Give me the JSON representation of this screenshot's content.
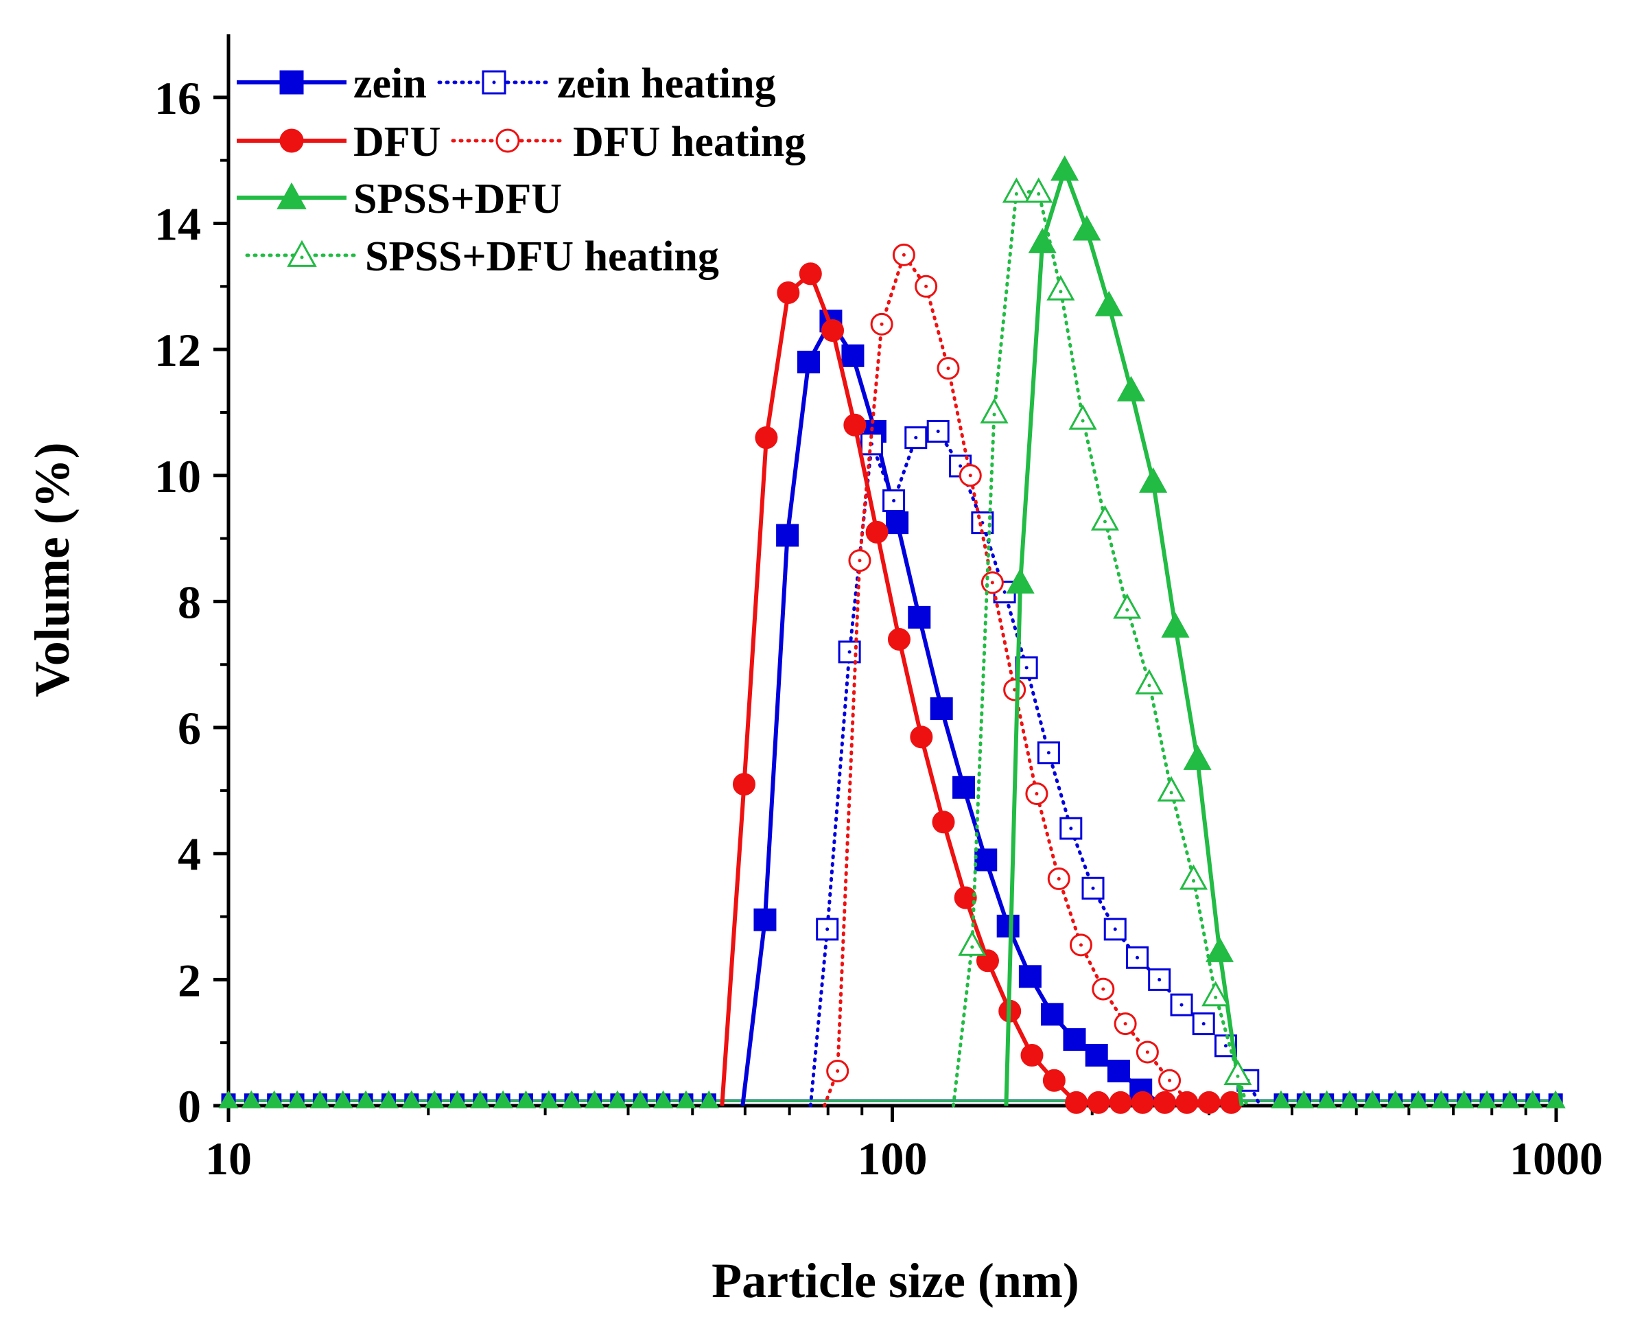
{
  "chart_data": {
    "type": "line",
    "xscale": "log",
    "xlim": [
      10,
      1000
    ],
    "ylim": [
      0,
      17
    ],
    "xlabel": "Particle size (nm)",
    "ylabel": "Volume (%)",
    "xticks": [
      10,
      100,
      1000
    ],
    "xtick_labels": [
      "10",
      "100",
      "1000"
    ],
    "yticks": [
      0,
      2,
      4,
      6,
      8,
      10,
      12,
      14,
      16
    ],
    "ytick_labels": [
      "0",
      "2",
      "4",
      "6",
      "8",
      "10",
      "12",
      "14",
      "16"
    ],
    "grid": false,
    "legend_position": "top-left",
    "series": [
      {
        "name": "zein",
        "color": "#0000dd",
        "dash": "solid",
        "marker": "square",
        "filled": true,
        "x": [
          59.5,
          64.3,
          69.5,
          74.8,
          80.8,
          87.2,
          94.2,
          101.7,
          109.8,
          118.6,
          128.1,
          138.3,
          149.4,
          161.3,
          174.1,
          188.1,
          203.1,
          219.3,
          236.8,
          255.7
        ],
        "y": [
          0,
          2.95,
          9.05,
          11.8,
          12.45,
          11.9,
          10.7,
          9.25,
          7.75,
          6.3,
          5.05,
          3.9,
          2.85,
          2.05,
          1.45,
          1.05,
          0.8,
          0.55,
          0.25,
          0
        ]
      },
      {
        "name": "zein heating",
        "color": "#0000dd",
        "dash": "dotted",
        "marker": "square",
        "filled": false,
        "x": [
          75.3,
          79.8,
          86.2,
          93.1,
          100.5,
          108.5,
          117.2,
          126.6,
          136.7,
          147.6,
          159.3,
          172.0,
          185.8,
          200.6,
          216.6,
          233.9,
          252.5,
          272.7,
          294.4,
          317.9,
          343.3,
          358.0
        ],
        "y": [
          0,
          2.8,
          7.2,
          10.5,
          9.6,
          10.6,
          10.7,
          10.15,
          9.25,
          8.15,
          6.95,
          5.6,
          4.4,
          3.45,
          2.8,
          2.35,
          2.0,
          1.6,
          1.3,
          0.95,
          0.4,
          0
        ]
      },
      {
        "name": "DFU",
        "color": "#ee1111",
        "dash": "solid",
        "marker": "circle",
        "filled": true,
        "x": [
          55.4,
          59.8,
          64.6,
          69.7,
          75.3,
          81.3,
          87.8,
          94.8,
          102.4,
          110.6,
          119.4,
          128.9,
          139.2,
          150.3,
          162.3,
          175.3,
          189.3,
          204.4,
          220.7,
          238.3,
          257.3,
          277.8,
          300.0,
          323.9
        ],
        "y": [
          0,
          5.1,
          10.6,
          12.9,
          13.2,
          12.3,
          10.8,
          9.1,
          7.4,
          5.85,
          4.5,
          3.3,
          2.3,
          1.5,
          0.8,
          0.4,
          0.05,
          0.05,
          0.05,
          0.05,
          0.05,
          0.05,
          0.05,
          0.05
        ]
      },
      {
        "name": "DFU heating",
        "color": "#ee1111",
        "dash": "dotted",
        "marker": "circle",
        "filled": false,
        "x": [
          79.0,
          82.7,
          89.3,
          96.4,
          104.1,
          112.4,
          121.4,
          131.1,
          141.5,
          152.8,
          165.0,
          178.2,
          192.4,
          207.8,
          224.4,
          242.3,
          261.6,
          282.5,
          305.0
        ],
        "y": [
          0,
          0.55,
          8.65,
          12.4,
          13.5,
          13.0,
          11.7,
          10.0,
          8.3,
          6.6,
          4.95,
          3.6,
          2.55,
          1.85,
          1.3,
          0.85,
          0.4,
          0,
          0
        ]
      },
      {
        "name": "SPSS+DFU",
        "color": "#22bb44",
        "dash": "solid",
        "marker": "triangle",
        "filled": true,
        "x": [
          148.4,
          155.9,
          168.3,
          181.8,
          196.3,
          212.0,
          228.9,
          247.1,
          266.9,
          288.1,
          311.2,
          336.0
        ],
        "y": [
          0,
          8.3,
          13.7,
          14.85,
          13.9,
          12.7,
          11.35,
          9.9,
          7.6,
          5.5,
          2.45,
          0
        ]
      },
      {
        "name": "SPSS+DFU heating",
        "color": "#22bb44",
        "dash": "dotted",
        "marker": "triangle",
        "filled": false,
        "x": [
          123.6,
          131.9,
          142.4,
          153.8,
          166.1,
          179.3,
          193.6,
          209.1,
          225.8,
          243.8,
          263.2,
          284.3,
          306.9,
          331.4,
          342.0
        ],
        "y": [
          0,
          2.55,
          11.0,
          14.5,
          14.5,
          12.95,
          10.9,
          9.3,
          7.9,
          6.7,
          5.0,
          3.6,
          1.75,
          0.5,
          0
        ]
      }
    ]
  }
}
